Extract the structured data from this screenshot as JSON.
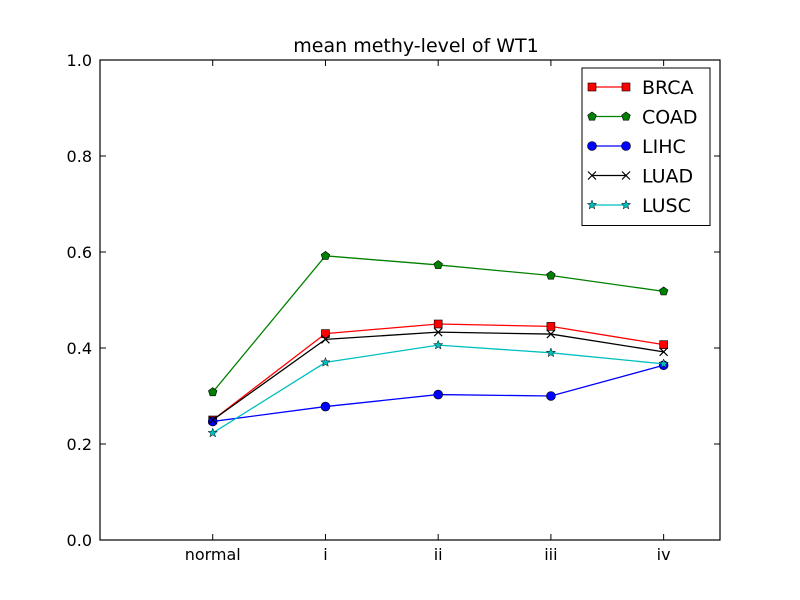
{
  "chart_data": {
    "type": "line",
    "title": "mean methy-level of WT1",
    "xlabel": "",
    "ylabel": "",
    "categories": [
      "normal",
      "i",
      "ii",
      "iii",
      "iv"
    ],
    "ylim": [
      0.0,
      1.0
    ],
    "yticks": [
      "0.0",
      "0.2",
      "0.4",
      "0.6",
      "0.8",
      "1.0"
    ],
    "legend_position": "top-right",
    "grid": false,
    "series": [
      {
        "name": "BRCA",
        "color": "#ff0000",
        "marker": "square",
        "values": [
          0.25,
          0.43,
          0.45,
          0.445,
          0.407
        ]
      },
      {
        "name": "COAD",
        "color": "#008000",
        "marker": "pentagon",
        "values": [
          0.308,
          0.592,
          0.573,
          0.551,
          0.518
        ]
      },
      {
        "name": "LIHC",
        "color": "#0000ff",
        "marker": "circle",
        "values": [
          0.247,
          0.278,
          0.303,
          0.3,
          0.364
        ]
      },
      {
        "name": "LUAD",
        "color": "#000000",
        "marker": "x",
        "values": [
          0.25,
          0.418,
          0.433,
          0.429,
          0.392
        ]
      },
      {
        "name": "LUSC",
        "color": "#00bfbf",
        "marker": "star",
        "values": [
          0.223,
          0.37,
          0.406,
          0.39,
          0.367
        ]
      }
    ]
  }
}
